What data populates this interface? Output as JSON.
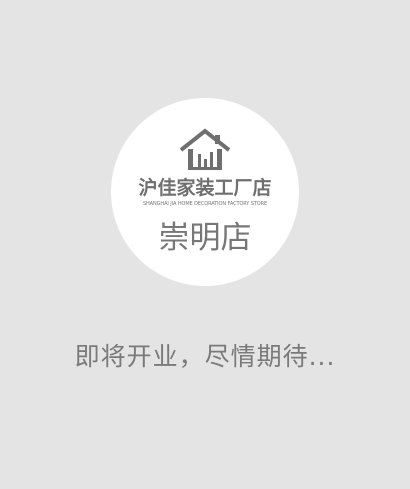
{
  "brand": {
    "icon": "house-icon",
    "name": "沪佳家装工厂店",
    "subtitle": "SHANGHAI JIA HOME DECORATION FACTORY STORE"
  },
  "store": {
    "name": "崇明店"
  },
  "message": {
    "text": "即将开业，尽情期待..."
  },
  "colors": {
    "background": "#e4e4e4",
    "badge": "#ffffff",
    "text": "#777777"
  }
}
